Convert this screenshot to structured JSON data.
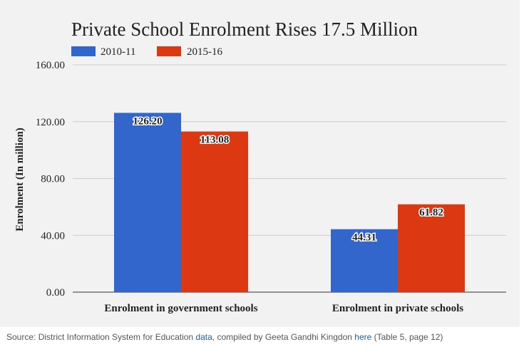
{
  "chart_data": {
    "type": "bar",
    "title": "Private School Enrolment Rises 17.5 Million",
    "ylabel": "Enrolment (In million)",
    "xlabel": "",
    "categories": [
      "Enrolment in government schools",
      "Enrolment in private schools"
    ],
    "series": [
      {
        "name": "2010-11",
        "values": [
          126.2,
          44.31
        ],
        "color": "#3366cc",
        "labels": [
          "126.20",
          "44.31"
        ]
      },
      {
        "name": "2015-16",
        "values": [
          113.08,
          61.82
        ],
        "color": "#dc3912",
        "labels": [
          "113.08",
          "61.82"
        ]
      }
    ],
    "ylim": [
      0,
      160
    ],
    "yticks": [
      0,
      40,
      80,
      120,
      160
    ],
    "ytick_labels": [
      "0.00",
      "40.00",
      "80.00",
      "120.00",
      "160.00"
    ],
    "grid": true,
    "legend_position": "top-left"
  },
  "source": {
    "prefix": "Source: District Information System for Education ",
    "link1": "data",
    "middle": ", compiled by Geeta Gandhi Kingdon ",
    "link2": "here",
    "suffix": " (Table 5, page 12)"
  }
}
